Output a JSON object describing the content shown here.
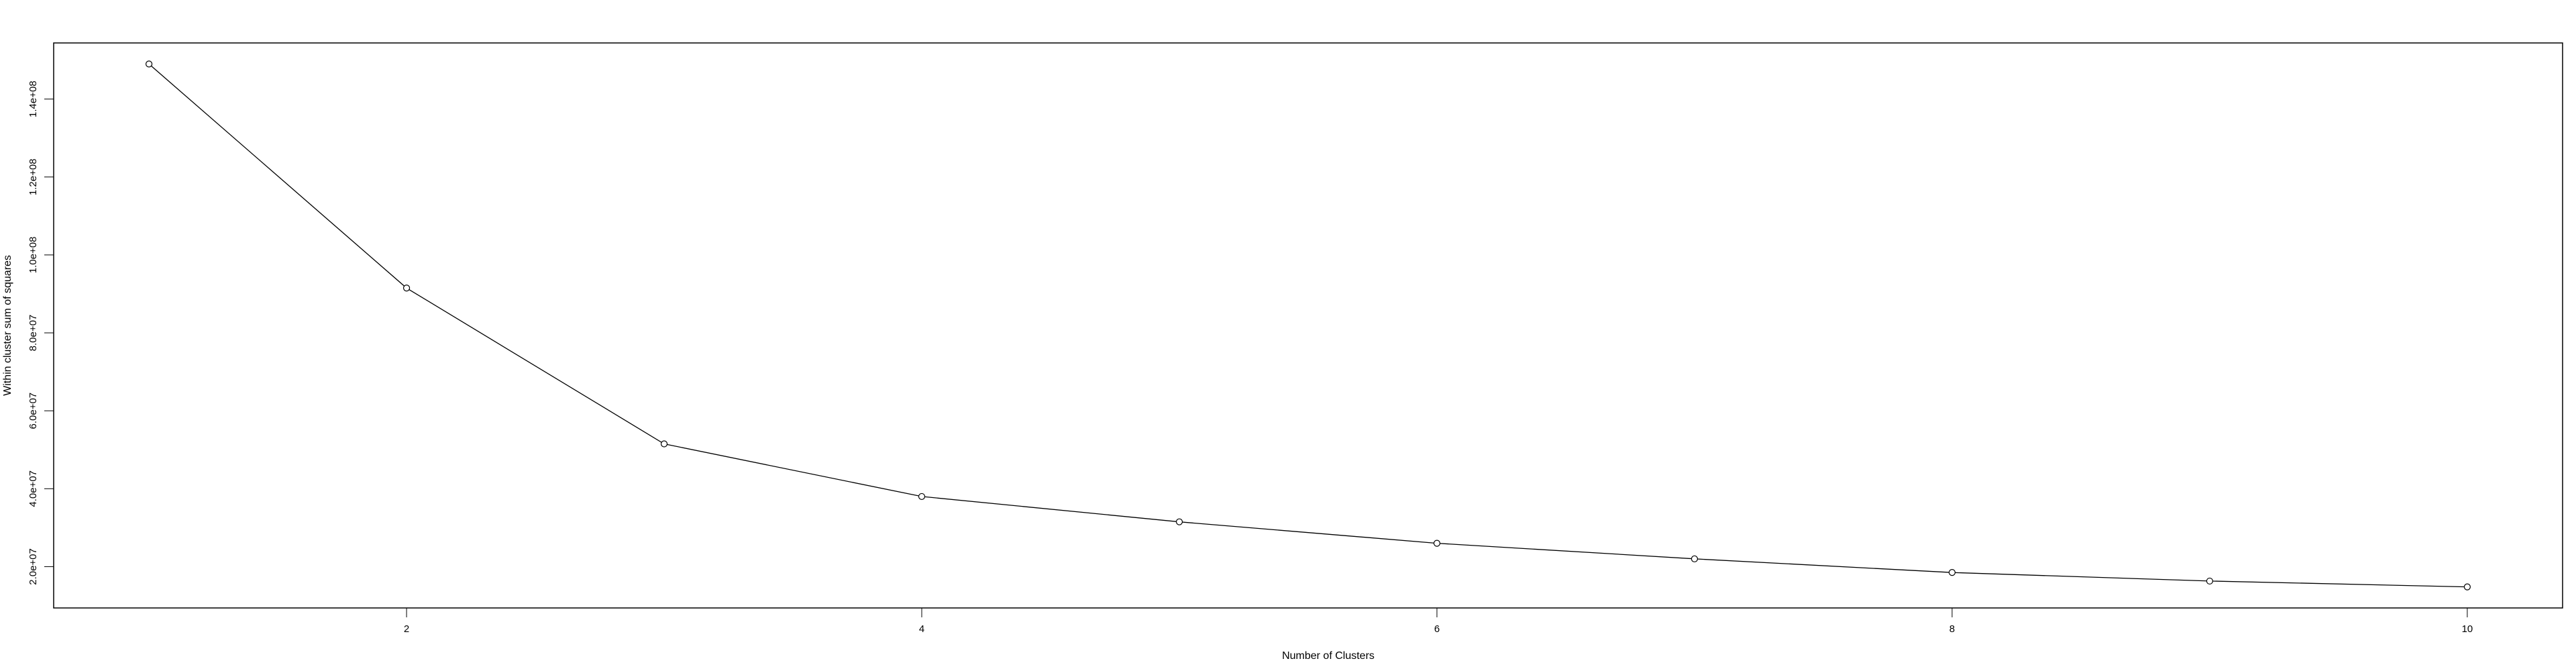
{
  "chart_data": {
    "type": "line",
    "title": "",
    "xlabel": "Number of Clusters",
    "ylabel": "Within cluster sum of squares",
    "x": [
      1,
      2,
      3,
      4,
      5,
      6,
      7,
      8,
      9,
      10
    ],
    "series": [
      {
        "values": [
          149000000,
          91500000,
          51500000,
          38000000,
          31500000,
          26000000,
          22000000,
          18500000,
          16300000,
          14800000
        ]
      }
    ],
    "xlim": [
      0.63,
      10.37
    ],
    "ylim": [
      9400000,
      154400000
    ],
    "xticks": [
      2,
      4,
      6,
      8,
      10
    ],
    "xtick_labels": [
      "2",
      "4",
      "6",
      "8",
      "10"
    ],
    "yticks": [
      20000000,
      40000000,
      60000000,
      80000000,
      100000000,
      120000000,
      140000000
    ],
    "ytick_labels": [
      "2.0e+07",
      "4.0e+07",
      "6.0e+07",
      "8.0e+07",
      "1.0e+08",
      "1.2e+08",
      "1.4e+08"
    ],
    "marker": "open-circle",
    "grid": false,
    "line_color": "#000000"
  }
}
